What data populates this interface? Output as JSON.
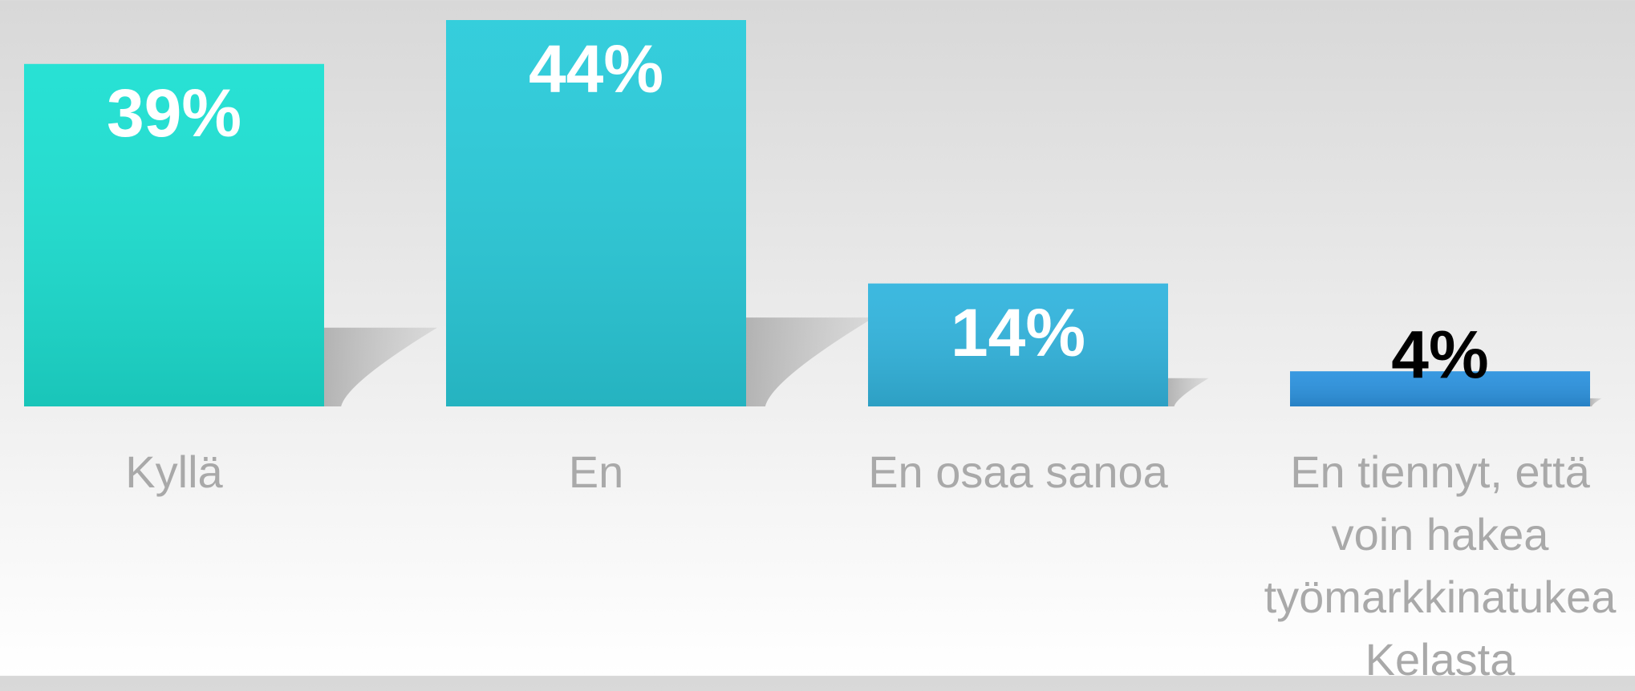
{
  "chart_data": {
    "type": "bar",
    "categories": [
      "Kyllä",
      "En",
      "En osaa sanoa",
      "En tiennyt, että voin hakea työmarkkinatukea Kelasta"
    ],
    "values": [
      39,
      44,
      14,
      4
    ],
    "value_labels": [
      "39%",
      "44%",
      "14%",
      "4%"
    ],
    "colors": [
      "#1de0d2",
      "#2acbda",
      "#33b5de",
      "#2d93df"
    ],
    "ylim": [
      0,
      44
    ]
  }
}
